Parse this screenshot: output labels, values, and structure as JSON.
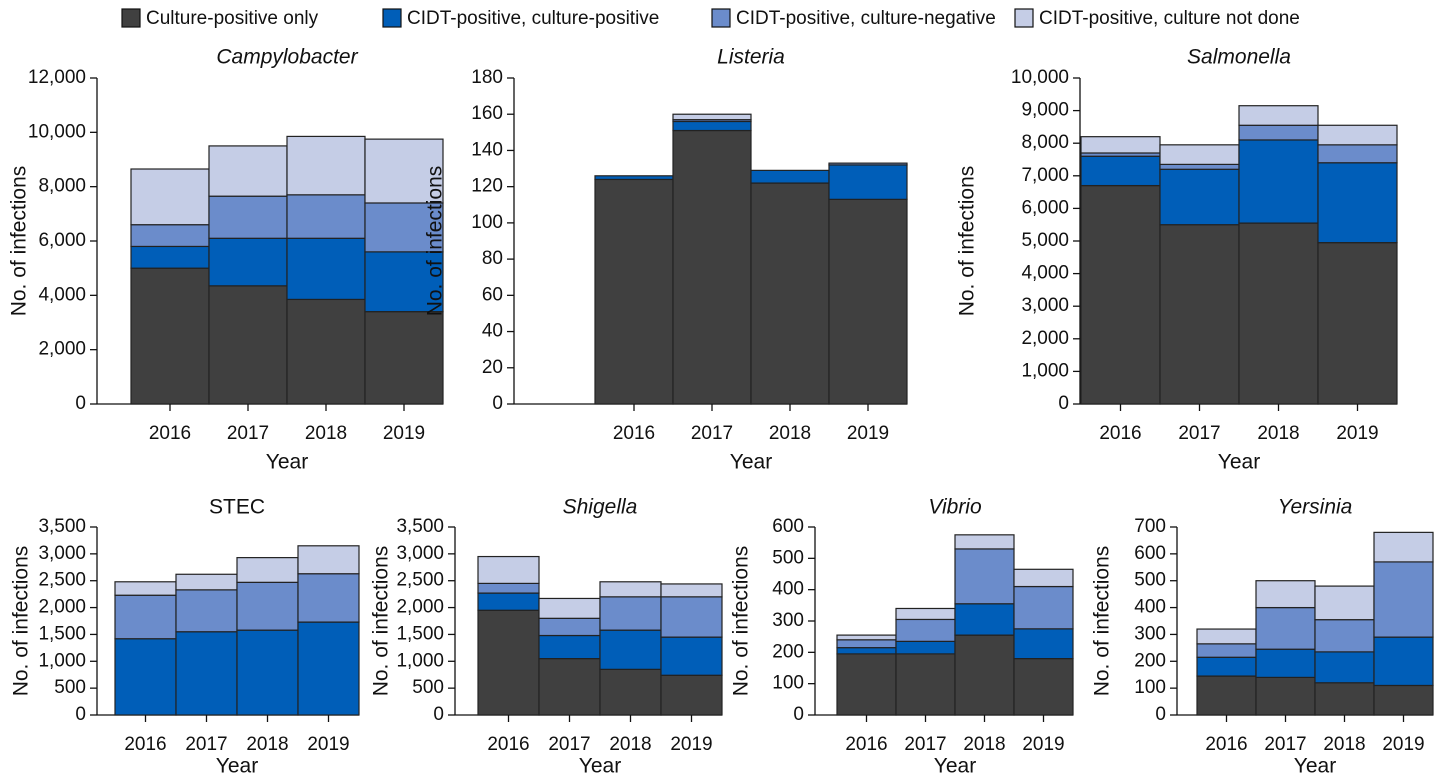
{
  "legend": [
    {
      "name": "Culture-positive only",
      "color": "#404040"
    },
    {
      "name": "CIDT-positive, culture-positive",
      "color": "#005eb8"
    },
    {
      "name": "CIDT-positive, culture-negative",
      "color": "#6b8ccb"
    },
    {
      "name": "CIDT-positive, culture not done",
      "color": "#c5cde6"
    }
  ],
  "chart_data": [
    {
      "type": "stacked-bar",
      "title": "Campylobacter",
      "title_italic": true,
      "xlabel": "Year",
      "ylabel": "No. of infections",
      "categories": [
        "2016",
        "2017",
        "2018",
        "2019"
      ],
      "series": [
        {
          "values": [
            5000,
            4350,
            3850,
            3400
          ]
        },
        {
          "values": [
            800,
            1750,
            2250,
            2200
          ]
        },
        {
          "values": [
            800,
            1550,
            1600,
            1800
          ]
        },
        {
          "values": [
            2050,
            1850,
            2150,
            2350
          ]
        }
      ],
      "ylim": [
        0,
        12000
      ],
      "yticks": [
        0,
        {
          "value": 2000,
          "label": "2,000"
        },
        {
          "value": 4000,
          "label": "4,000"
        },
        {
          "value": 6000,
          "label": "6,000"
        },
        {
          "value": 8000,
          "label": "8,000"
        },
        {
          "value": 10000,
          "label": "10,000"
        },
        {
          "value": 12000,
          "label": "12,000"
        }
      ]
    },
    {
      "type": "stacked-bar",
      "title": "Listeria",
      "title_italic": true,
      "xlabel": "Year",
      "ylabel": "No. of infections",
      "categories": [
        "2016",
        "2017",
        "2018",
        "2019"
      ],
      "series": [
        {
          "values": [
            124,
            151,
            122,
            113
          ]
        },
        {
          "values": [
            2,
            5,
            7,
            19
          ]
        },
        {
          "values": [
            0,
            1,
            0,
            1
          ]
        },
        {
          "values": [
            0,
            3,
            0,
            0
          ]
        }
      ],
      "ylim": [
        0,
        180
      ],
      "yticks": [
        0,
        20,
        40,
        60,
        80,
        100,
        120,
        140,
        160,
        180
      ]
    },
    {
      "type": "stacked-bar",
      "title": "Salmonella",
      "title_italic": true,
      "xlabel": "Year",
      "ylabel": "No. of infections",
      "categories": [
        "2016",
        "2017",
        "2018",
        "2019"
      ],
      "series": [
        {
          "values": [
            6700,
            5500,
            5550,
            4950
          ]
        },
        {
          "values": [
            900,
            1700,
            2550,
            2450
          ]
        },
        {
          "values": [
            100,
            150,
            450,
            550
          ]
        },
        {
          "values": [
            500,
            600,
            600,
            600
          ]
        }
      ],
      "ylim": [
        0,
        10000
      ],
      "yticks": [
        0,
        {
          "value": 1000,
          "label": "1,000"
        },
        {
          "value": 2000,
          "label": "2,000"
        },
        {
          "value": 3000,
          "label": "3,000"
        },
        {
          "value": 4000,
          "label": "4,000"
        },
        {
          "value": 5000,
          "label": "5,000"
        },
        {
          "value": 6000,
          "label": "6,000"
        },
        {
          "value": 7000,
          "label": "7,000"
        },
        {
          "value": 8000,
          "label": "8,000"
        },
        {
          "value": 9000,
          "label": "9,000"
        },
        {
          "value": 10000,
          "label": "10,000"
        }
      ]
    },
    {
      "type": "stacked-bar",
      "title": "STEC",
      "title_italic": false,
      "xlabel": "Year",
      "ylabel": "No. of infections",
      "categories": [
        "2016",
        "2017",
        "2018",
        "2019"
      ],
      "series": [
        {
          "values": [
            0,
            0,
            0,
            0
          ]
        },
        {
          "values": [
            1420,
            1550,
            1580,
            1730
          ]
        },
        {
          "values": [
            810,
            780,
            890,
            900
          ]
        },
        {
          "values": [
            250,
            290,
            460,
            520
          ]
        }
      ],
      "ylim": [
        0,
        3500
      ],
      "yticks": [
        0,
        500,
        {
          "value": 1000,
          "label": "1,000"
        },
        {
          "value": 1500,
          "label": "1,500"
        },
        {
          "value": 2000,
          "label": "2,000"
        },
        {
          "value": 2500,
          "label": "2,500"
        },
        {
          "value": 3000,
          "label": "3,000"
        },
        {
          "value": 3500,
          "label": "3,500"
        }
      ]
    },
    {
      "type": "stacked-bar",
      "title": "Shigella",
      "title_italic": true,
      "xlabel": "Year",
      "ylabel": "No. of infections",
      "categories": [
        "2016",
        "2017",
        "2018",
        "2019"
      ],
      "series": [
        {
          "values": [
            1950,
            1050,
            850,
            740
          ]
        },
        {
          "values": [
            320,
            430,
            730,
            710
          ]
        },
        {
          "values": [
            180,
            320,
            620,
            750
          ]
        },
        {
          "values": [
            500,
            370,
            280,
            240
          ]
        }
      ],
      "ylim": [
        0,
        3500
      ],
      "yticks": [
        0,
        500,
        {
          "value": 1000,
          "label": "1,000"
        },
        {
          "value": 1500,
          "label": "1,500"
        },
        {
          "value": 2000,
          "label": "2,000"
        },
        {
          "value": 2500,
          "label": "2,500"
        },
        {
          "value": 3000,
          "label": "3,000"
        },
        {
          "value": 3500,
          "label": "3,500"
        }
      ]
    },
    {
      "type": "stacked-bar",
      "title": "Vibrio",
      "title_italic": true,
      "xlabel": "Year",
      "ylabel": "No. of infections",
      "categories": [
        "2016",
        "2017",
        "2018",
        "2019"
      ],
      "series": [
        {
          "values": [
            195,
            195,
            255,
            180
          ]
        },
        {
          "values": [
            20,
            40,
            100,
            95
          ]
        },
        {
          "values": [
            25,
            70,
            175,
            135
          ]
        },
        {
          "values": [
            15,
            35,
            45,
            55
          ]
        }
      ],
      "ylim": [
        0,
        600
      ],
      "yticks": [
        0,
        100,
        200,
        300,
        400,
        500,
        600
      ]
    },
    {
      "type": "stacked-bar",
      "title": "Yersinia",
      "title_italic": true,
      "xlabel": "Year",
      "ylabel": "No. of infections",
      "categories": [
        "2016",
        "2017",
        "2018",
        "2019"
      ],
      "series": [
        {
          "values": [
            145,
            140,
            120,
            110
          ]
        },
        {
          "values": [
            70,
            105,
            115,
            180
          ]
        },
        {
          "values": [
            50,
            155,
            120,
            280
          ]
        },
        {
          "values": [
            55,
            100,
            125,
            110
          ]
        }
      ],
      "ylim": [
        0,
        700
      ],
      "yticks": [
        0,
        100,
        200,
        300,
        400,
        500,
        600,
        700
      ]
    }
  ]
}
